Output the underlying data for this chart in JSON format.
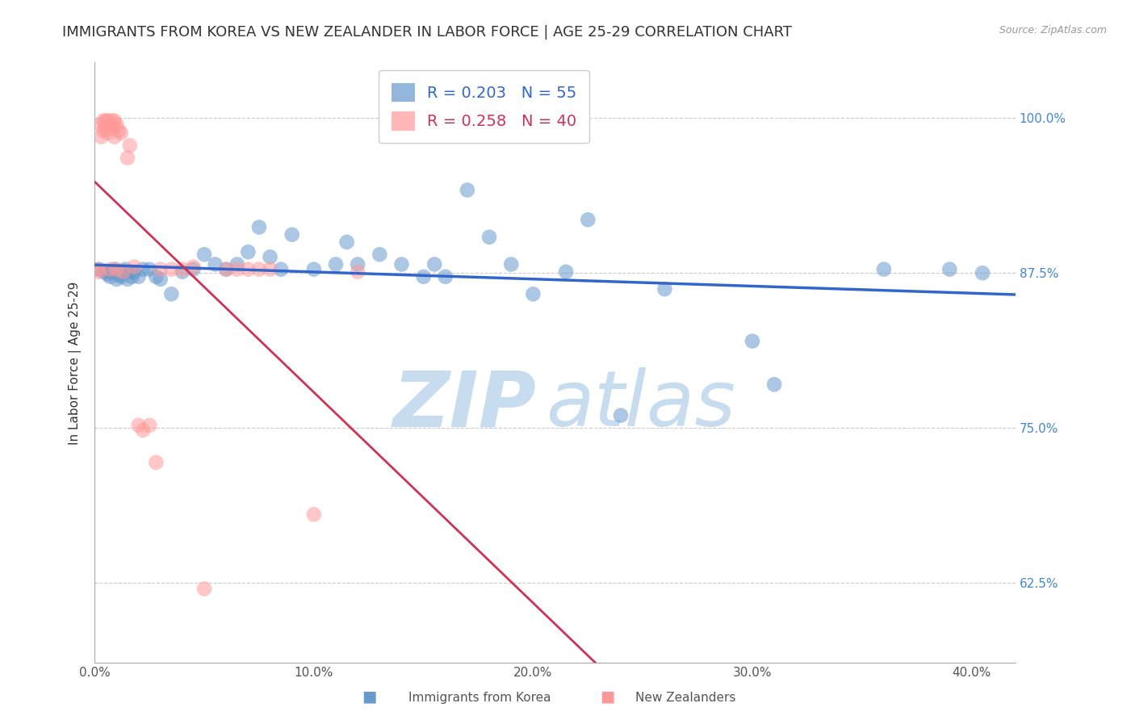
{
  "title": "IMMIGRANTS FROM KOREA VS NEW ZEALANDER IN LABOR FORCE | AGE 25-29 CORRELATION CHART",
  "source": "Source: ZipAtlas.com",
  "ylabel": "In Labor Force | Age 25-29",
  "xlabel_ticks": [
    "0.0%",
    "10.0%",
    "20.0%",
    "30.0%",
    "40.0%"
  ],
  "xlabel_vals": [
    0.0,
    0.1,
    0.2,
    0.3,
    0.4
  ],
  "ytick_vals": [
    0.625,
    0.75,
    0.875,
    1.0
  ],
  "ytick_labels": [
    "62.5%",
    "75.0%",
    "87.5%",
    "100.0%"
  ],
  "xmin": 0.0,
  "xmax": 0.42,
  "ymin": 0.56,
  "ymax": 1.045,
  "blue_color": "#6699CC",
  "pink_color": "#FF9999",
  "blue_line_color": "#3366CC",
  "pink_line_color": "#CC3355",
  "blue_R": 0.203,
  "blue_N": 55,
  "pink_R": 0.258,
  "pink_N": 40,
  "blue_scatter_x": [
    0.002,
    0.004,
    0.005,
    0.006,
    0.007,
    0.008,
    0.009,
    0.01,
    0.011,
    0.012,
    0.013,
    0.014,
    0.015,
    0.016,
    0.017,
    0.018,
    0.02,
    0.022,
    0.025,
    0.028,
    0.03,
    0.035,
    0.04,
    0.045,
    0.05,
    0.055,
    0.06,
    0.065,
    0.07,
    0.075,
    0.08,
    0.085,
    0.09,
    0.1,
    0.11,
    0.115,
    0.12,
    0.13,
    0.14,
    0.15,
    0.155,
    0.16,
    0.17,
    0.18,
    0.19,
    0.2,
    0.215,
    0.225,
    0.24,
    0.26,
    0.3,
    0.31,
    0.36,
    0.39,
    0.405
  ],
  "blue_scatter_y": [
    0.878,
    0.876,
    0.876,
    0.874,
    0.872,
    0.876,
    0.878,
    0.87,
    0.874,
    0.872,
    0.876,
    0.878,
    0.87,
    0.876,
    0.872,
    0.876,
    0.872,
    0.878,
    0.878,
    0.872,
    0.87,
    0.858,
    0.876,
    0.878,
    0.89,
    0.882,
    0.878,
    0.882,
    0.892,
    0.912,
    0.888,
    0.878,
    0.906,
    0.878,
    0.882,
    0.9,
    0.882,
    0.89,
    0.882,
    0.872,
    0.882,
    0.872,
    0.942,
    0.904,
    0.882,
    0.858,
    0.876,
    0.918,
    0.76,
    0.862,
    0.82,
    0.785,
    0.878,
    0.878,
    0.875
  ],
  "pink_scatter_x": [
    0.001,
    0.002,
    0.003,
    0.003,
    0.004,
    0.004,
    0.005,
    0.005,
    0.006,
    0.006,
    0.007,
    0.007,
    0.008,
    0.008,
    0.009,
    0.009,
    0.01,
    0.01,
    0.011,
    0.012,
    0.013,
    0.015,
    0.016,
    0.018,
    0.02,
    0.022,
    0.025,
    0.028,
    0.03,
    0.035,
    0.04,
    0.045,
    0.05,
    0.06,
    0.065,
    0.07,
    0.075,
    0.08,
    0.1,
    0.12
  ],
  "pink_scatter_y": [
    0.878,
    0.876,
    0.995,
    0.985,
    0.998,
    0.99,
    0.998,
    0.992,
    0.998,
    0.988,
    0.995,
    0.878,
    0.998,
    0.992,
    0.998,
    0.985,
    0.995,
    0.878,
    0.99,
    0.988,
    0.876,
    0.968,
    0.978,
    0.88,
    0.752,
    0.748,
    0.752,
    0.722,
    0.878,
    0.878,
    0.878,
    0.88,
    0.62,
    0.878,
    0.878,
    0.878,
    0.878,
    0.878,
    0.68,
    0.876
  ],
  "watermark_zi": "ZIP",
  "watermark_atlas": "atlas",
  "watermark_color": "#C8DCF0",
  "legend_label_blue": "Immigrants from Korea",
  "legend_label_pink": "New Zealanders",
  "title_fontsize": 13,
  "axis_label_fontsize": 11,
  "tick_fontsize": 11,
  "legend_fontsize": 14
}
